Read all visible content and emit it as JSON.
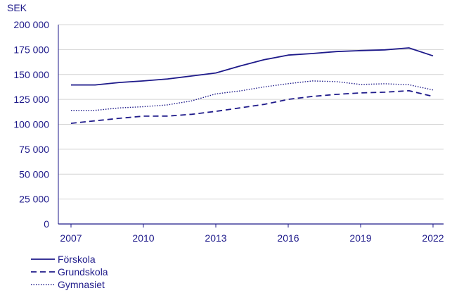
{
  "chart_data": {
    "type": "line",
    "ylabel": "SEK",
    "ylim": [
      0,
      200000
    ],
    "yticks": [
      0,
      25000,
      50000,
      75000,
      100000,
      125000,
      150000,
      175000,
      200000
    ],
    "ytick_labels": [
      "0",
      "25 000",
      "50 000",
      "75 000",
      "100 000",
      "125 000",
      "150 000",
      "175 000",
      "200 000"
    ],
    "xlim": [
      2007,
      2022
    ],
    "xticks": [
      2007,
      2010,
      2013,
      2016,
      2019,
      2022
    ],
    "xtick_labels": [
      "2007",
      "2010",
      "2013",
      "2016",
      "2019",
      "2022"
    ],
    "grid": "horizontal",
    "legend_position": "bottom-left",
    "x": [
      2007,
      2008,
      2009,
      2010,
      2011,
      2012,
      2013,
      2014,
      2015,
      2016,
      2017,
      2018,
      2019,
      2020,
      2021,
      2022
    ],
    "series": [
      {
        "name": "Förskola",
        "style": "solid",
        "values": [
          139500,
          139500,
          142000,
          143500,
          145500,
          148500,
          151500,
          158500,
          164800,
          169500,
          171000,
          173000,
          174000,
          174700,
          176700,
          168700
        ]
      },
      {
        "name": "Grundskola",
        "style": "dashed",
        "values": [
          101000,
          103500,
          106000,
          108200,
          108300,
          110000,
          113000,
          116500,
          120000,
          125000,
          128000,
          130000,
          131500,
          132200,
          133700,
          128000
        ]
      },
      {
        "name": "Gymnasiet",
        "style": "dotted",
        "values": [
          114000,
          114000,
          116500,
          117700,
          119500,
          123500,
          130500,
          133500,
          137500,
          140800,
          143500,
          142800,
          140000,
          140700,
          139700,
          134500
        ]
      }
    ],
    "colors": {
      "line": "#1e1a8a",
      "grid": "#d4d4d4",
      "axis": "#1e1a8a"
    }
  }
}
